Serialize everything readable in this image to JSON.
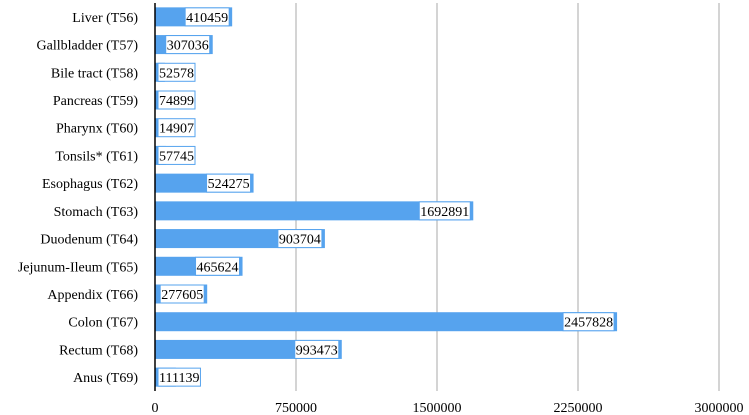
{
  "chart_data": {
    "type": "bar",
    "orientation": "horizontal",
    "title": "",
    "xlabel": "",
    "ylabel": "",
    "categories": [
      "Liver (T56)",
      "Gallbladder (T57)",
      "Bile tract (T58)",
      "Pancreas (T59)",
      "Pharynx (T60)",
      "Tonsils* (T61)",
      "Esophagus (T62)",
      "Stomach (T63)",
      "Duodenum (T64)",
      "Jejunum-Ileum (T65)",
      "Appendix (T66)",
      "Colon (T67)",
      "Rectum (T68)",
      "Anus (T69)"
    ],
    "values": [
      410459,
      307036,
      52578,
      74899,
      14907,
      57745,
      524275,
      1692891,
      903704,
      465624,
      277605,
      2457828,
      993473,
      111139
    ],
    "data_labels": [
      "410459",
      "307036",
      "52578",
      "74899",
      "14907",
      "57745",
      "524275",
      "1692891",
      "903704",
      "465624",
      "277605",
      "2457828",
      "993473",
      "111139"
    ],
    "xlim": [
      0,
      3000000
    ],
    "x_ticks": [
      0,
      750000,
      1500000,
      2250000,
      3000000
    ],
    "x_tick_labels": [
      "0",
      "750000",
      "1500000",
      "2250000",
      "3000000"
    ],
    "grid": true,
    "legend": "none",
    "colors": {
      "bar": "#56a3ee",
      "grid": "#bdbdbd",
      "axis": "#000000",
      "label_border": "#56a3ee"
    }
  }
}
